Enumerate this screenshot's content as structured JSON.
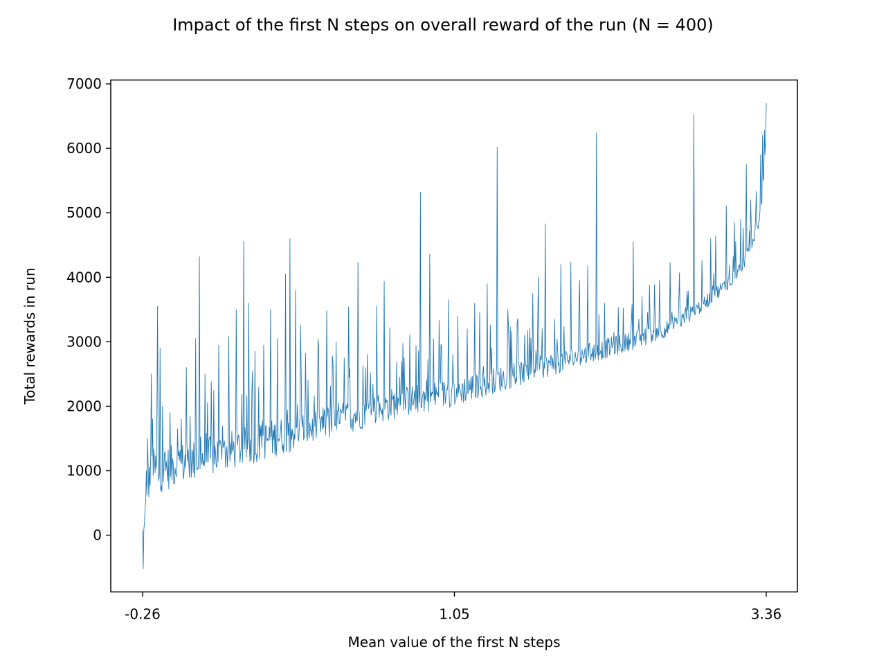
{
  "chart_data": {
    "type": "line",
    "title": "Impact of the first N steps on overall reward of the run (N = 400)",
    "xlabel": "Mean value of the first N steps",
    "ylabel": "Total rewards in run",
    "x_ticks": [
      "-0.26",
      "1.05",
      "3.36"
    ],
    "y_ticks": [
      0,
      1000,
      2000,
      3000,
      4000,
      5000,
      6000,
      7000
    ],
    "xlim": [
      -0.4,
      3.53
    ],
    "ylim": [
      -880,
      7060
    ],
    "grid": false,
    "legend": "none",
    "color": "#1f77b4",
    "x_axis_note": "x positions are ordinal (runs sorted by mean value of first N steps); ticks mark -0.26 at the first run, 1.05 at the middle and 3.36 at the last",
    "series": [
      {
        "points": 1000,
        "baseline_keypoints": [
          [
            0,
            -300
          ],
          [
            2,
            -300
          ],
          [
            4,
            0
          ],
          [
            7,
            300
          ],
          [
            10,
            600
          ],
          [
            15,
            750
          ],
          [
            30,
            750
          ],
          [
            60,
            850
          ],
          [
            100,
            950
          ],
          [
            150,
            1100
          ],
          [
            200,
            1250
          ],
          [
            250,
            1400
          ],
          [
            300,
            1550
          ],
          [
            350,
            1700
          ],
          [
            400,
            1850
          ],
          [
            450,
            1950
          ],
          [
            500,
            2050
          ],
          [
            550,
            2200
          ],
          [
            600,
            2350
          ],
          [
            650,
            2500
          ],
          [
            700,
            2650
          ],
          [
            750,
            2800
          ],
          [
            800,
            2950
          ],
          [
            850,
            3150
          ],
          [
            880,
            3350
          ],
          [
            910,
            3600
          ],
          [
            940,
            3850
          ],
          [
            960,
            4100
          ],
          [
            975,
            4400
          ],
          [
            985,
            4700
          ],
          [
            992,
            5100
          ],
          [
            996,
            5600
          ],
          [
            999,
            6200
          ]
        ],
        "spikes": [
          [
            1,
            -520
          ],
          [
            3,
            180
          ],
          [
            6,
            1000
          ],
          [
            8,
            1500
          ],
          [
            14,
            2500
          ],
          [
            16,
            1800
          ],
          [
            24,
            3550
          ],
          [
            28,
            2900
          ],
          [
            32,
            2000
          ],
          [
            36,
            1300
          ],
          [
            44,
            1900
          ],
          [
            56,
            1650
          ],
          [
            62,
            1800
          ],
          [
            70,
            2600
          ],
          [
            85,
            3050
          ],
          [
            91,
            4320
          ],
          [
            100,
            2500
          ],
          [
            110,
            2380
          ],
          [
            122,
            2950
          ],
          [
            138,
            3080
          ],
          [
            150,
            3500
          ],
          [
            162,
            4560
          ],
          [
            170,
            3600
          ],
          [
            180,
            2850
          ],
          [
            194,
            2950
          ],
          [
            205,
            3500
          ],
          [
            216,
            3050
          ],
          [
            229,
            4050
          ],
          [
            236,
            4600
          ],
          [
            245,
            3800
          ],
          [
            253,
            3260
          ],
          [
            265,
            2400
          ],
          [
            282,
            2900
          ],
          [
            295,
            3480
          ],
          [
            310,
            2990
          ],
          [
            330,
            3540
          ],
          [
            345,
            4230
          ],
          [
            360,
            2800
          ],
          [
            375,
            3550
          ],
          [
            387,
            3940
          ],
          [
            396,
            3220
          ],
          [
            415,
            2700
          ],
          [
            428,
            3100
          ],
          [
            445,
            5320
          ],
          [
            460,
            4360
          ],
          [
            475,
            3330
          ],
          [
            490,
            3650
          ],
          [
            505,
            3400
          ],
          [
            520,
            3200
          ],
          [
            532,
            3600
          ],
          [
            540,
            3450
          ],
          [
            552,
            3900
          ],
          [
            568,
            6020
          ],
          [
            585,
            3500
          ],
          [
            600,
            3300
          ],
          [
            612,
            3100
          ],
          [
            625,
            3750
          ],
          [
            634,
            4000
          ],
          [
            645,
            4830
          ],
          [
            660,
            3350
          ],
          [
            670,
            4200
          ],
          [
            686,
            4230
          ],
          [
            700,
            3950
          ],
          [
            713,
            4170
          ],
          [
            727,
            6240
          ],
          [
            740,
            3600
          ],
          [
            755,
            3150
          ],
          [
            770,
            3520
          ],
          [
            786,
            4550
          ],
          [
            800,
            3700
          ],
          [
            812,
            3880
          ],
          [
            828,
            3950
          ],
          [
            845,
            4230
          ],
          [
            860,
            4070
          ],
          [
            872,
            3780
          ],
          [
            883,
            6530
          ],
          [
            896,
            4260
          ],
          [
            910,
            4600
          ],
          [
            918,
            4640
          ],
          [
            935,
            5110
          ],
          [
            948,
            4850
          ],
          [
            958,
            4900
          ],
          [
            967,
            5750
          ],
          [
            974,
            5200
          ],
          [
            983,
            5330
          ],
          [
            990,
            5900
          ],
          [
            993,
            6200
          ],
          [
            996,
            6280
          ],
          [
            999,
            6700
          ]
        ]
      }
    ]
  }
}
